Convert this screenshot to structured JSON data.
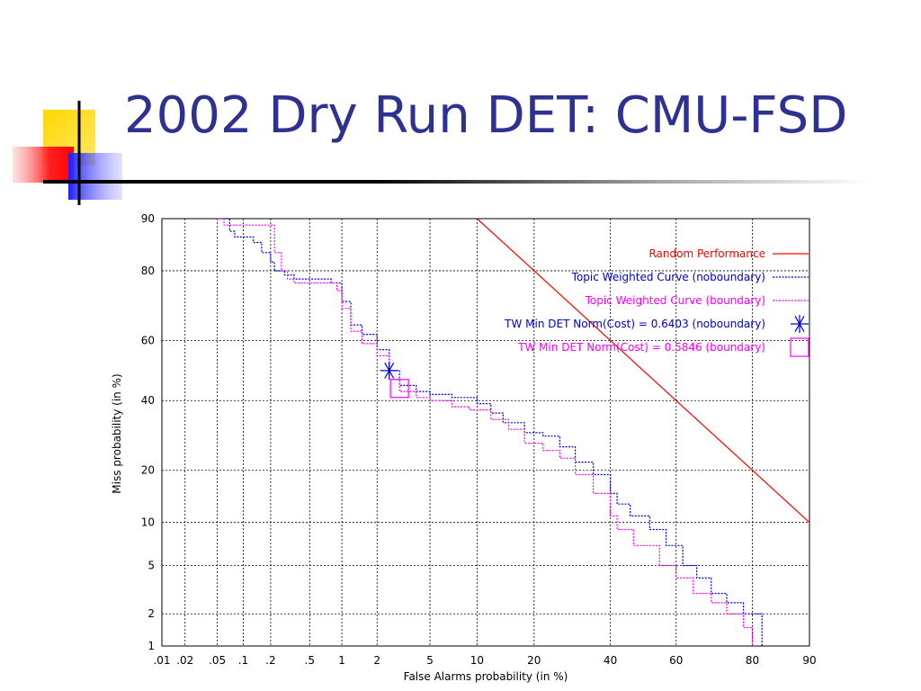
{
  "slide": {
    "title": "2002 Dry Run DET: CMU-FSD"
  },
  "colors": {
    "title": "#2e3192",
    "random": "#ff0000",
    "noboundary": "#0000cc",
    "boundary": "#ff00ff"
  },
  "chart_data": {
    "type": "line",
    "xlabel": "False Alarms probability (in %)",
    "ylabel": "Miss probability (in %)",
    "x_scale": "normal-deviate",
    "y_scale": "normal-deviate",
    "xlim": [
      0.01,
      90
    ],
    "ylim": [
      1,
      90
    ],
    "grid": true,
    "legend_position": "top-right",
    "x_ticks": [
      0.01,
      0.02,
      0.05,
      0.1,
      0.2,
      0.5,
      1,
      2,
      5,
      10,
      20,
      40,
      60,
      80,
      90
    ],
    "x_tick_labels": [
      ".01",
      ".02",
      ".05",
      ".1",
      ".2",
      ".5",
      "1",
      "2",
      "5",
      "10",
      "20",
      "40",
      "60",
      "80",
      "90"
    ],
    "y_ticks": [
      1,
      2,
      5,
      10,
      20,
      40,
      60,
      80,
      90
    ],
    "y_tick_labels": [
      "1",
      "2",
      "5",
      "10",
      "20",
      "40",
      "60",
      "80",
      "90"
    ],
    "series": [
      {
        "name": "Random Performance",
        "style": "solid",
        "x": [
          10,
          90
        ],
        "y": [
          90,
          10
        ]
      },
      {
        "name": "Topic Weighted Curve (noboundary)",
        "style": "dotted",
        "x": [
          0.05,
          0.07,
          0.08,
          0.13,
          0.16,
          0.2,
          0.22,
          0.28,
          0.35,
          0.5,
          0.8,
          1.0,
          1.2,
          1.5,
          2.0,
          2.5,
          3.0,
          4.0,
          5.0,
          7.0,
          10,
          12,
          14,
          18,
          22,
          26,
          30,
          35,
          40,
          42,
          46,
          52,
          57,
          62,
          66,
          70,
          74,
          78,
          82
        ],
        "y": [
          90,
          88,
          87,
          86,
          84,
          82,
          80,
          79,
          78,
          78,
          77,
          72,
          65,
          62,
          57,
          50,
          45,
          43,
          42,
          41,
          39,
          36,
          33,
          30,
          29,
          26,
          22,
          19,
          15,
          13,
          11,
          9,
          7,
          5,
          4,
          3,
          2.5,
          2,
          1
        ]
      },
      {
        "name": "Topic Weighted Curve (boundary)",
        "style": "dotted",
        "x": [
          0.05,
          0.06,
          0.2,
          0.22,
          0.26,
          0.3,
          0.35,
          0.5,
          0.7,
          0.9,
          1.0,
          1.2,
          1.5,
          2.0,
          2.5,
          3.0,
          4.0,
          5.0,
          7.0,
          9.0,
          12,
          15,
          18,
          22,
          26,
          30,
          35,
          40,
          42,
          47,
          55,
          60,
          65,
          70,
          74,
          78,
          80
        ],
        "y": [
          90,
          89,
          89,
          84,
          80,
          78,
          77,
          77,
          77,
          75,
          70,
          63,
          59,
          55,
          47,
          43,
          41,
          40,
          38,
          37,
          34,
          31,
          27,
          25,
          23,
          19,
          15,
          11,
          9,
          7,
          5,
          4,
          3,
          2.5,
          2,
          1.5,
          1
        ]
      },
      {
        "name": "TW Min DET Norm(Cost) = 0.6403 (noboundary)",
        "marker": "asterisk",
        "x": [
          2.5
        ],
        "y": [
          50
        ]
      },
      {
        "name": "TW Min DET Norm(Cost) = 0.5846 (boundary)",
        "marker": "square",
        "x": [
          3.0
        ],
        "y": [
          44
        ]
      }
    ]
  }
}
